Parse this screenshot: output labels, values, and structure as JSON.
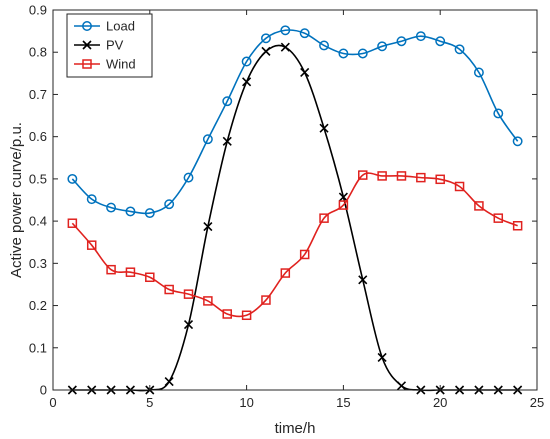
{
  "chart_data": {
    "type": "line",
    "xlabel": "time/h",
    "ylabel": "Active power curve/p.u.",
    "xlim": [
      0,
      25
    ],
    "ylim": [
      0,
      0.9
    ],
    "xticks": [
      0,
      5,
      10,
      15,
      20,
      25
    ],
    "yticks": [
      0,
      0.1,
      0.2,
      0.3,
      0.4,
      0.5,
      0.6,
      0.7,
      0.8,
      0.9
    ],
    "grid": false,
    "legend_position": "top-left",
    "x": [
      1,
      2,
      3,
      4,
      5,
      6,
      7,
      8,
      9,
      10,
      11,
      12,
      13,
      14,
      15,
      16,
      17,
      18,
      19,
      20,
      21,
      22,
      23,
      24
    ],
    "series": [
      {
        "name": "Load",
        "color": "#0072BD",
        "marker": "circle",
        "values": [
          0.5,
          0.452,
          0.432,
          0.423,
          0.419,
          0.44,
          0.503,
          0.594,
          0.684,
          0.778,
          0.833,
          0.852,
          0.845,
          0.816,
          0.797,
          0.797,
          0.814,
          0.826,
          0.838,
          0.826,
          0.807,
          0.752,
          0.655,
          0.589
        ]
      },
      {
        "name": "PV",
        "color": "#000000",
        "marker": "x",
        "values": [
          0,
          0,
          0,
          0,
          0,
          0.02,
          0.155,
          0.387,
          0.589,
          0.73,
          0.802,
          0.812,
          0.752,
          0.62,
          0.457,
          0.261,
          0.077,
          0.01,
          0,
          0,
          0,
          0,
          0,
          0
        ]
      },
      {
        "name": "Wind",
        "color": "#E0221F",
        "marker": "square",
        "values": [
          0.395,
          0.343,
          0.285,
          0.279,
          0.267,
          0.238,
          0.227,
          0.211,
          0.18,
          0.177,
          0.213,
          0.277,
          0.321,
          0.407,
          0.438,
          0.509,
          0.507,
          0.507,
          0.503,
          0.499,
          0.482,
          0.436,
          0.407,
          0.389
        ]
      }
    ]
  }
}
